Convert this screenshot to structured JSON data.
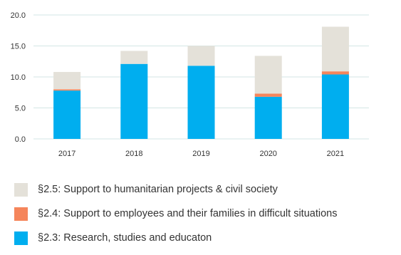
{
  "chart_data": {
    "type": "bar",
    "stacked": true,
    "categories": [
      "2017",
      "2018",
      "2019",
      "2020",
      "2021"
    ],
    "series": [
      {
        "name": "§2.3: Research, studies and educaton",
        "color": "#00aeef",
        "values": [
          7.8,
          12.1,
          11.8,
          6.8,
          10.4
        ]
      },
      {
        "name": "§2.4: Support to employees and their families in difficult situations",
        "color": "#f5855b",
        "values": [
          0.2,
          0.0,
          0.0,
          0.5,
          0.5
        ]
      },
      {
        "name": "§2.5: Support to humanitarian projects & civil society",
        "color": "#e4e1d9",
        "values": [
          2.8,
          2.1,
          3.2,
          6.1,
          7.2
        ]
      }
    ],
    "yticks": [
      "0.0",
      "5.0",
      "10.0",
      "15.0",
      "20.0"
    ],
    "ylim": [
      0,
      20
    ],
    "grid": true,
    "grid_color": "#d3e6e4",
    "legend_position": "bottom",
    "legend_order": [
      2,
      1,
      0
    ]
  }
}
